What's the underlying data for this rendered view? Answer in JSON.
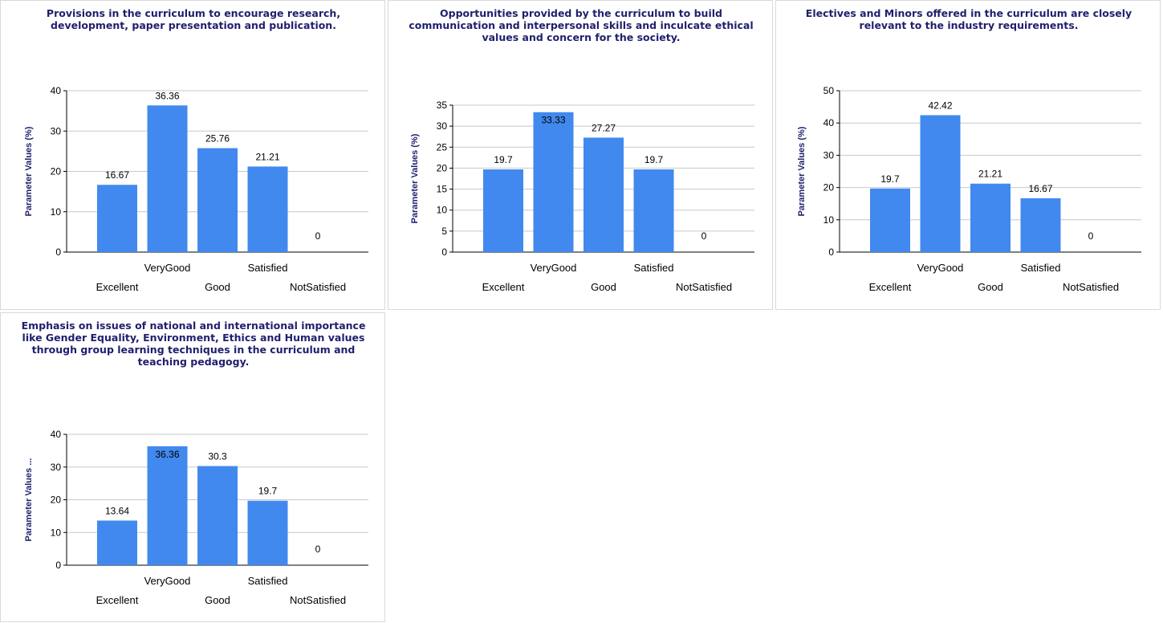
{
  "colors": {
    "bar": "#4189ee",
    "title": "#1f1f6e",
    "axis": "#000000",
    "grid": "#c8c8c8",
    "ylabel": "#1f1f6e"
  },
  "chart_data": [
    {
      "type": "bar",
      "title": "Provisions in the curriculum to encourage research, development, paper presentation and publication.",
      "ylabel": "Parameter Values (%)",
      "categories": [
        "Excellent",
        "VeryGood",
        "Good",
        "Satisfied",
        "NotSatisfied"
      ],
      "values": [
        16.67,
        36.36,
        25.76,
        21.21,
        0
      ],
      "ylim": [
        0,
        40
      ],
      "yticks": [
        0,
        10,
        20,
        30,
        40
      ],
      "grid": true
    },
    {
      "type": "bar",
      "title": "Opportunities provided by the curriculum to build communication and interpersonal skills and inculcate ethical values and concern for the society.",
      "ylabel": "Parameter Values (%)",
      "categories": [
        "Excellent",
        "VeryGood",
        "Good",
        "Satisfied",
        "NotSatisfied"
      ],
      "values": [
        19.7,
        33.33,
        27.27,
        19.7,
        0
      ],
      "ylim": [
        0,
        35
      ],
      "yticks": [
        0,
        5,
        10,
        15,
        20,
        25,
        30,
        35
      ],
      "grid": true
    },
    {
      "type": "bar",
      "title": "Electives and Minors offered in the curriculum are closely relevant to the industry requirements.",
      "ylabel": "Parameter Values (%)",
      "categories": [
        "Excellent",
        "VeryGood",
        "Good",
        "Satisfied",
        "NotSatisfied"
      ],
      "values": [
        19.7,
        42.42,
        21.21,
        16.67,
        0
      ],
      "ylim": [
        0,
        50
      ],
      "yticks": [
        0,
        10,
        20,
        30,
        40,
        50
      ],
      "grid": true
    },
    {
      "type": "bar",
      "title": "Emphasis on issues of national and international importance like Gender Equality, Environment, Ethics and Human values through group learning techniques in the curriculum and teaching pedagogy.",
      "ylabel": "Parameter Values ...",
      "categories": [
        "Excellent",
        "VeryGood",
        "Good",
        "Satisfied",
        "NotSatisfied"
      ],
      "values": [
        13.64,
        36.36,
        30.3,
        19.7,
        0
      ],
      "ylim": [
        0,
        40
      ],
      "yticks": [
        0,
        10,
        20,
        30,
        40
      ],
      "grid": true
    }
  ]
}
